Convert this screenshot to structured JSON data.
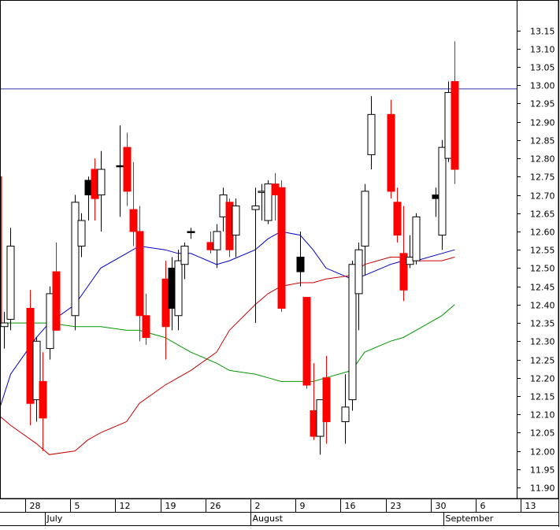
{
  "chart_data": {
    "type": "candlestick",
    "title": "",
    "xlabel": "",
    "ylabel": "",
    "ylim": [
      11.87,
      13.22
    ],
    "y_ticks": [
      "13.15",
      "13.10",
      "13.05",
      "13.00",
      "12.95",
      "12.90",
      "12.85",
      "12.80",
      "12.75",
      "12.70",
      "12.65",
      "12.60",
      "12.55",
      "12.50",
      "12.45",
      "12.40",
      "12.35",
      "12.30",
      "12.25",
      "12.20",
      "12.15",
      "12.10",
      "12.05",
      "12.00",
      "11.95",
      "11.90"
    ],
    "x_day_ticks": [
      {
        "label": "28",
        "date": "2004-06-28"
      },
      {
        "label": "5",
        "date": "2004-07-05"
      },
      {
        "label": "12",
        "date": "2004-07-12"
      },
      {
        "label": "19",
        "date": "2004-07-19"
      },
      {
        "label": "26",
        "date": "2004-07-26"
      },
      {
        "label": "2",
        "date": "2004-08-02"
      },
      {
        "label": "9",
        "date": "2004-08-09"
      },
      {
        "label": "16",
        "date": "2004-08-16"
      },
      {
        "label": "23",
        "date": "2004-08-23"
      },
      {
        "label": "30",
        "date": "2004-08-30"
      },
      {
        "label": "6",
        "date": "2004-09-06"
      },
      {
        "label": "13",
        "date": "2004-09-13"
      }
    ],
    "x_month_labels": [
      {
        "label": "July",
        "date": "2004-07-01"
      },
      {
        "label": "August",
        "date": "2004-08-02"
      },
      {
        "label": "September",
        "date": "2004-09-01"
      }
    ],
    "reference_line": {
      "value": 12.99,
      "color": "#3333aa"
    },
    "candles": [
      {
        "date": "2004-06-23",
        "open": 12.75,
        "high": 12.82,
        "low": 12.3,
        "close": 12.35,
        "color": "red"
      },
      {
        "date": "2004-06-24",
        "open": 12.34,
        "high": 12.38,
        "low": 12.28,
        "close": 12.35,
        "color": "white"
      },
      {
        "date": "2004-06-25",
        "open": 12.36,
        "high": 12.61,
        "low": 12.33,
        "close": 12.56,
        "color": "white"
      },
      {
        "date": "2004-06-28",
        "open": 12.39,
        "high": 12.44,
        "low": 12.07,
        "close": 12.13,
        "color": "red"
      },
      {
        "date": "2004-06-29",
        "open": 12.14,
        "high": 12.31,
        "low": 12.08,
        "close": 12.3,
        "color": "white"
      },
      {
        "date": "2004-06-30",
        "open": 12.19,
        "high": 12.27,
        "low": 12.0,
        "close": 12.09,
        "color": "red"
      },
      {
        "date": "2004-07-01",
        "open": 12.28,
        "high": 12.45,
        "low": 12.25,
        "close": 12.43,
        "color": "white"
      },
      {
        "date": "2004-07-02",
        "open": 12.49,
        "high": 12.57,
        "low": 12.33,
        "close": 12.33,
        "color": "red"
      },
      {
        "date": "2004-07-05",
        "open": 12.37,
        "high": 12.7,
        "low": 12.33,
        "close": 12.68,
        "color": "white"
      },
      {
        "date": "2004-07-06",
        "open": 12.56,
        "high": 12.65,
        "low": 12.53,
        "close": 12.63,
        "color": "white"
      },
      {
        "date": "2004-07-07",
        "open": 12.7,
        "high": 12.75,
        "low": 12.63,
        "close": 12.74,
        "color": "black"
      },
      {
        "date": "2004-07-08",
        "open": 12.77,
        "high": 12.8,
        "low": 12.63,
        "close": 12.69,
        "color": "red"
      },
      {
        "date": "2004-07-09",
        "open": 12.7,
        "high": 12.82,
        "low": 12.6,
        "close": 12.77,
        "color": "white"
      },
      {
        "date": "2004-07-12",
        "open": 12.78,
        "high": 12.89,
        "low": 12.64,
        "close": 12.78,
        "color": "black"
      },
      {
        "date": "2004-07-13",
        "open": 12.83,
        "high": 12.87,
        "low": 12.67,
        "close": 12.71,
        "color": "red"
      },
      {
        "date": "2004-07-14",
        "open": 12.66,
        "high": 12.79,
        "low": 12.56,
        "close": 12.6,
        "color": "red"
      },
      {
        "date": "2004-07-15",
        "open": 12.6,
        "high": 12.67,
        "low": 12.3,
        "close": 12.37,
        "color": "red"
      },
      {
        "date": "2004-07-16",
        "open": 12.37,
        "high": 12.43,
        "low": 12.29,
        "close": 12.31,
        "color": "red"
      },
      {
        "date": "2004-07-19",
        "open": 12.47,
        "high": 12.52,
        "low": 12.25,
        "close": 12.34,
        "color": "red"
      },
      {
        "date": "2004-07-20",
        "open": 12.39,
        "high": 12.53,
        "low": 12.33,
        "close": 12.5,
        "color": "black"
      },
      {
        "date": "2004-07-21",
        "open": 12.37,
        "high": 12.55,
        "low": 12.33,
        "close": 12.52,
        "color": "white"
      },
      {
        "date": "2004-07-22",
        "open": 12.51,
        "high": 12.57,
        "low": 12.47,
        "close": 12.56,
        "color": "white"
      },
      {
        "date": "2004-07-23",
        "open": 12.6,
        "high": 12.61,
        "low": 12.58,
        "close": 12.6,
        "color": "black"
      },
      {
        "date": "2004-07-26",
        "open": 12.57,
        "high": 12.6,
        "low": 12.54,
        "close": 12.55,
        "color": "red"
      },
      {
        "date": "2004-07-27",
        "open": 12.55,
        "high": 12.62,
        "low": 12.5,
        "close": 12.6,
        "color": "white"
      },
      {
        "date": "2004-07-28",
        "open": 12.64,
        "high": 12.72,
        "low": 12.6,
        "close": 12.7,
        "color": "white"
      },
      {
        "date": "2004-07-29",
        "open": 12.68,
        "high": 12.69,
        "low": 12.53,
        "close": 12.55,
        "color": "red"
      },
      {
        "date": "2004-07-30",
        "open": 12.59,
        "high": 12.69,
        "low": 12.53,
        "close": 12.67,
        "color": "white"
      },
      {
        "date": "2004-08-02",
        "open": 12.66,
        "high": 12.72,
        "low": 12.35,
        "close": 12.67,
        "color": "white"
      },
      {
        "date": "2004-08-03",
        "open": 12.71,
        "high": 12.73,
        "low": 12.63,
        "close": 12.71,
        "color": "white"
      },
      {
        "date": "2004-08-04",
        "open": 12.63,
        "high": 12.74,
        "low": 12.62,
        "close": 12.73,
        "color": "white"
      },
      {
        "date": "2004-08-05",
        "open": 12.73,
        "high": 12.76,
        "low": 12.63,
        "close": 12.7,
        "color": "red"
      },
      {
        "date": "2004-08-06",
        "open": 12.72,
        "high": 12.74,
        "low": 12.38,
        "close": 12.39,
        "color": "red"
      },
      {
        "date": "2004-08-09",
        "open": 12.53,
        "high": 12.6,
        "low": 12.45,
        "close": 12.49,
        "color": "black"
      },
      {
        "date": "2004-08-10",
        "open": 12.42,
        "high": 12.42,
        "low": 12.17,
        "close": 12.18,
        "color": "red"
      },
      {
        "date": "2004-08-11",
        "open": 12.11,
        "high": 12.24,
        "low": 12.03,
        "close": 12.04,
        "color": "red"
      },
      {
        "date": "2004-08-12",
        "open": 12.04,
        "high": 12.14,
        "low": 11.99,
        "close": 12.14,
        "color": "white"
      },
      {
        "date": "2004-08-13",
        "open": 12.2,
        "high": 12.26,
        "low": 12.02,
        "close": 12.08,
        "color": "red"
      },
      {
        "date": "2004-08-16",
        "open": 12.08,
        "high": 12.21,
        "low": 12.02,
        "close": 12.12,
        "color": "white"
      },
      {
        "date": "2004-08-17",
        "open": 12.14,
        "high": 12.52,
        "low": 12.11,
        "close": 12.51,
        "color": "white"
      },
      {
        "date": "2004-08-18",
        "open": 12.43,
        "high": 12.57,
        "low": 12.33,
        "close": 12.55,
        "color": "white"
      },
      {
        "date": "2004-08-19",
        "open": 12.56,
        "high": 12.73,
        "low": 12.48,
        "close": 12.71,
        "color": "white"
      },
      {
        "date": "2004-08-20",
        "open": 12.81,
        "high": 12.97,
        "low": 12.77,
        "close": 12.92,
        "color": "white"
      },
      {
        "date": "2004-08-23",
        "open": 12.92,
        "high": 12.96,
        "low": 12.69,
        "close": 12.71,
        "color": "red"
      },
      {
        "date": "2004-08-24",
        "open": 12.68,
        "high": 12.72,
        "low": 12.57,
        "close": 12.59,
        "color": "red"
      },
      {
        "date": "2004-08-25",
        "open": 12.54,
        "high": 12.67,
        "low": 12.41,
        "close": 12.44,
        "color": "red"
      },
      {
        "date": "2004-08-26",
        "open": 12.51,
        "high": 12.59,
        "low": 12.5,
        "close": 12.53,
        "color": "white"
      },
      {
        "date": "2004-08-27",
        "open": 12.52,
        "high": 12.65,
        "low": 12.51,
        "close": 12.64,
        "color": "white"
      },
      {
        "date": "2004-08-30",
        "open": 12.69,
        "high": 12.72,
        "low": 12.64,
        "close": 12.7,
        "color": "black"
      },
      {
        "date": "2004-08-31",
        "open": 12.59,
        "high": 12.85,
        "low": 12.55,
        "close": 12.83,
        "color": "white"
      },
      {
        "date": "2004-09-01",
        "open": 12.8,
        "high": 13.01,
        "low": 12.79,
        "close": 12.98,
        "color": "white"
      },
      {
        "date": "2004-09-02",
        "open": 13.01,
        "high": 13.12,
        "low": 12.73,
        "close": 12.77,
        "color": "red"
      }
    ],
    "series": [
      {
        "color": "#0000cc",
        "points": [
          [
            "2004-06-23",
            12.1
          ],
          [
            "2004-06-25",
            12.21
          ],
          [
            "2004-06-29",
            12.31
          ],
          [
            "2004-07-01",
            12.35
          ],
          [
            "2004-07-05",
            12.4
          ],
          [
            "2004-07-07",
            12.45
          ],
          [
            "2004-07-09",
            12.5
          ],
          [
            "2004-07-13",
            12.54
          ],
          [
            "2004-07-15",
            12.56
          ],
          [
            "2004-07-19",
            12.55
          ],
          [
            "2004-07-21",
            12.54
          ],
          [
            "2004-07-23",
            12.54
          ],
          [
            "2004-07-27",
            12.51
          ],
          [
            "2004-07-29",
            12.52
          ],
          [
            "2004-08-02",
            12.55
          ],
          [
            "2004-08-04",
            12.58
          ],
          [
            "2004-08-06",
            12.6
          ],
          [
            "2004-08-09",
            12.59
          ],
          [
            "2004-08-11",
            12.55
          ],
          [
            "2004-08-13",
            12.5
          ],
          [
            "2004-08-17",
            12.47
          ],
          [
            "2004-08-19",
            12.48
          ],
          [
            "2004-08-23",
            12.51
          ],
          [
            "2004-08-25",
            12.52
          ],
          [
            "2004-08-27",
            12.52
          ],
          [
            "2004-08-31",
            12.54
          ],
          [
            "2004-09-02",
            12.55
          ]
        ]
      },
      {
        "color": "#009900",
        "points": [
          [
            "2004-06-23",
            12.35
          ],
          [
            "2004-06-25",
            12.35
          ],
          [
            "2004-06-29",
            12.35
          ],
          [
            "2004-07-01",
            12.35
          ],
          [
            "2004-07-05",
            12.34
          ],
          [
            "2004-07-07",
            12.34
          ],
          [
            "2004-07-09",
            12.34
          ],
          [
            "2004-07-13",
            12.33
          ],
          [
            "2004-07-15",
            12.33
          ],
          [
            "2004-07-19",
            12.31
          ],
          [
            "2004-07-21",
            12.29
          ],
          [
            "2004-07-23",
            12.27
          ],
          [
            "2004-07-27",
            12.24
          ],
          [
            "2004-07-29",
            12.22
          ],
          [
            "2004-08-02",
            12.21
          ],
          [
            "2004-08-04",
            12.2
          ],
          [
            "2004-08-06",
            12.19
          ],
          [
            "2004-08-09",
            12.19
          ],
          [
            "2004-08-11",
            12.19
          ],
          [
            "2004-08-13",
            12.2
          ],
          [
            "2004-08-17",
            12.22
          ],
          [
            "2004-08-19",
            12.27
          ],
          [
            "2004-08-23",
            12.3
          ],
          [
            "2004-08-25",
            12.31
          ],
          [
            "2004-08-27",
            12.33
          ],
          [
            "2004-08-31",
            12.37
          ],
          [
            "2004-09-02",
            12.4
          ]
        ]
      },
      {
        "color": "#cc0000",
        "points": [
          [
            "2004-06-23",
            12.1
          ],
          [
            "2004-06-25",
            12.07
          ],
          [
            "2004-06-29",
            12.02
          ],
          [
            "2004-07-01",
            11.99
          ],
          [
            "2004-07-05",
            12.0
          ],
          [
            "2004-07-07",
            12.03
          ],
          [
            "2004-07-09",
            12.05
          ],
          [
            "2004-07-13",
            12.08
          ],
          [
            "2004-07-15",
            12.13
          ],
          [
            "2004-07-19",
            12.18
          ],
          [
            "2004-07-21",
            12.2
          ],
          [
            "2004-07-23",
            12.22
          ],
          [
            "2004-07-27",
            12.27
          ],
          [
            "2004-07-29",
            12.33
          ],
          [
            "2004-08-02",
            12.4
          ],
          [
            "2004-08-04",
            12.43
          ],
          [
            "2004-08-06",
            12.45
          ],
          [
            "2004-08-09",
            12.46
          ],
          [
            "2004-08-11",
            12.46
          ],
          [
            "2004-08-13",
            12.47
          ],
          [
            "2004-08-17",
            12.48
          ],
          [
            "2004-08-19",
            12.51
          ],
          [
            "2004-08-23",
            12.53
          ],
          [
            "2004-08-25",
            12.53
          ],
          [
            "2004-08-27",
            12.52
          ],
          [
            "2004-08-31",
            12.52
          ],
          [
            "2004-09-02",
            12.53
          ]
        ]
      }
    ],
    "grid": false,
    "legend": "none"
  }
}
